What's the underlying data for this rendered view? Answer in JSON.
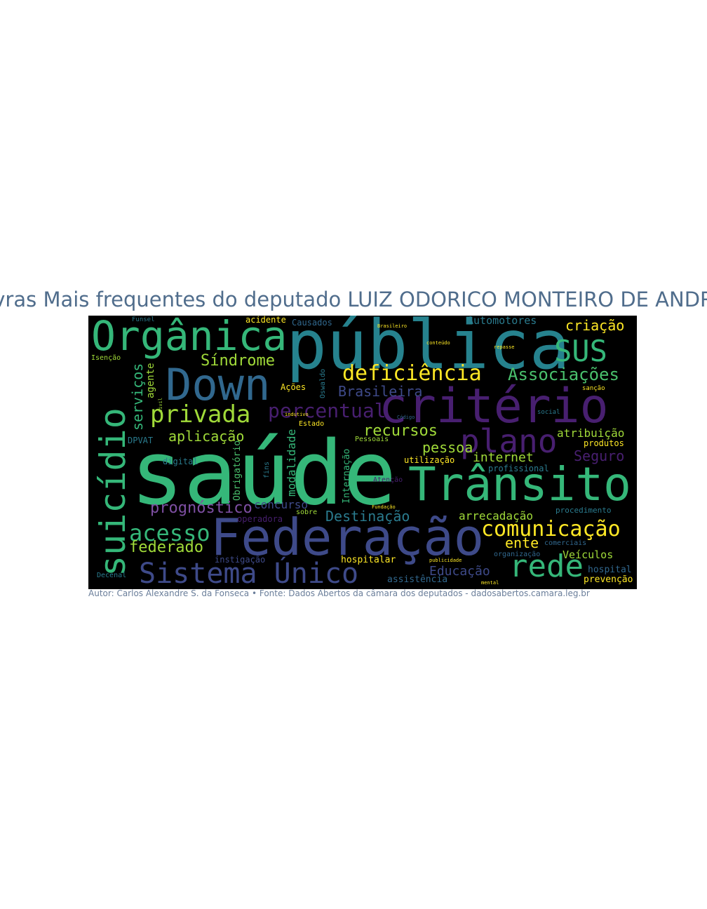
{
  "title": "Palavras Mais frequentes do deputado LUIZ ODORICO MONTEIRO DE ANDRADE",
  "caption": "Autor: Carlos Alexandre S. da Fonseca • Fonte: Dados Abertos da câmara dos deputados - dadosabertos.camara.leg.br",
  "words": {
    "w01": "saúde",
    "w02": "pública",
    "w03": "Federação",
    "w04": "critério",
    "w05": "Trânsito",
    "w06": "Orgânica",
    "w07": "Down",
    "w08": "suicídio",
    "w09": "Sistema Único",
    "w10": "plano",
    "w11": "deficiência",
    "w12": "rede",
    "w13": "comunicação",
    "w14": "SUS",
    "w15": "privada",
    "w16": "acesso",
    "w17": "Associações",
    "w18": "percentual",
    "w19": "federado",
    "w20": "Síndrome",
    "w21": "criação",
    "w22": "prognóstico",
    "w23": "recursos",
    "w24": "pessoa",
    "w25": "aplicação",
    "w26": "Brasileira",
    "w27": "Destinação",
    "w28": "serviços",
    "w29": "Seguro",
    "w30": "internet",
    "w31": "arrecadação",
    "w32": "Educação",
    "w33": "ente",
    "w34": "concurso",
    "w35": "atribuição",
    "w36": "Veículos",
    "w37": "Automotores",
    "w38": "modalidade",
    "w39": "agente",
    "w40": "Obrigatório",
    "w41": "Internação",
    "w42": "hospitalar",
    "w43": "assistência",
    "w44": "prevenção",
    "w45": "hospital",
    "w46": "produtos",
    "w47": "profissional",
    "w48": "utilização",
    "w49": "operadora",
    "w50": "instigação",
    "w51": "acidente",
    "w52": "Causados",
    "w53": "DPVAT",
    "w54": "Ações",
    "w55": "digital",
    "w56": "procedimento",
    "w57": "organização",
    "w58": "Estado",
    "w59": "Pessoais",
    "w60": "Atenção",
    "w61": "sobre",
    "w62": "fins",
    "w63": "Oswaldo",
    "w64": "comerciais",
    "w65": "Isenção",
    "w66": "Funsel",
    "w67": "Decenal",
    "w68": "sanção",
    "w69": "social",
    "w70": "Código",
    "w71": "Brasileiro",
    "w72": "Fundação",
    "w73": "indutivo",
    "w74": "Civil",
    "w75": "conteúdo",
    "w76": "repasse",
    "w77": "mental",
    "w78": "publicidade"
  }
}
